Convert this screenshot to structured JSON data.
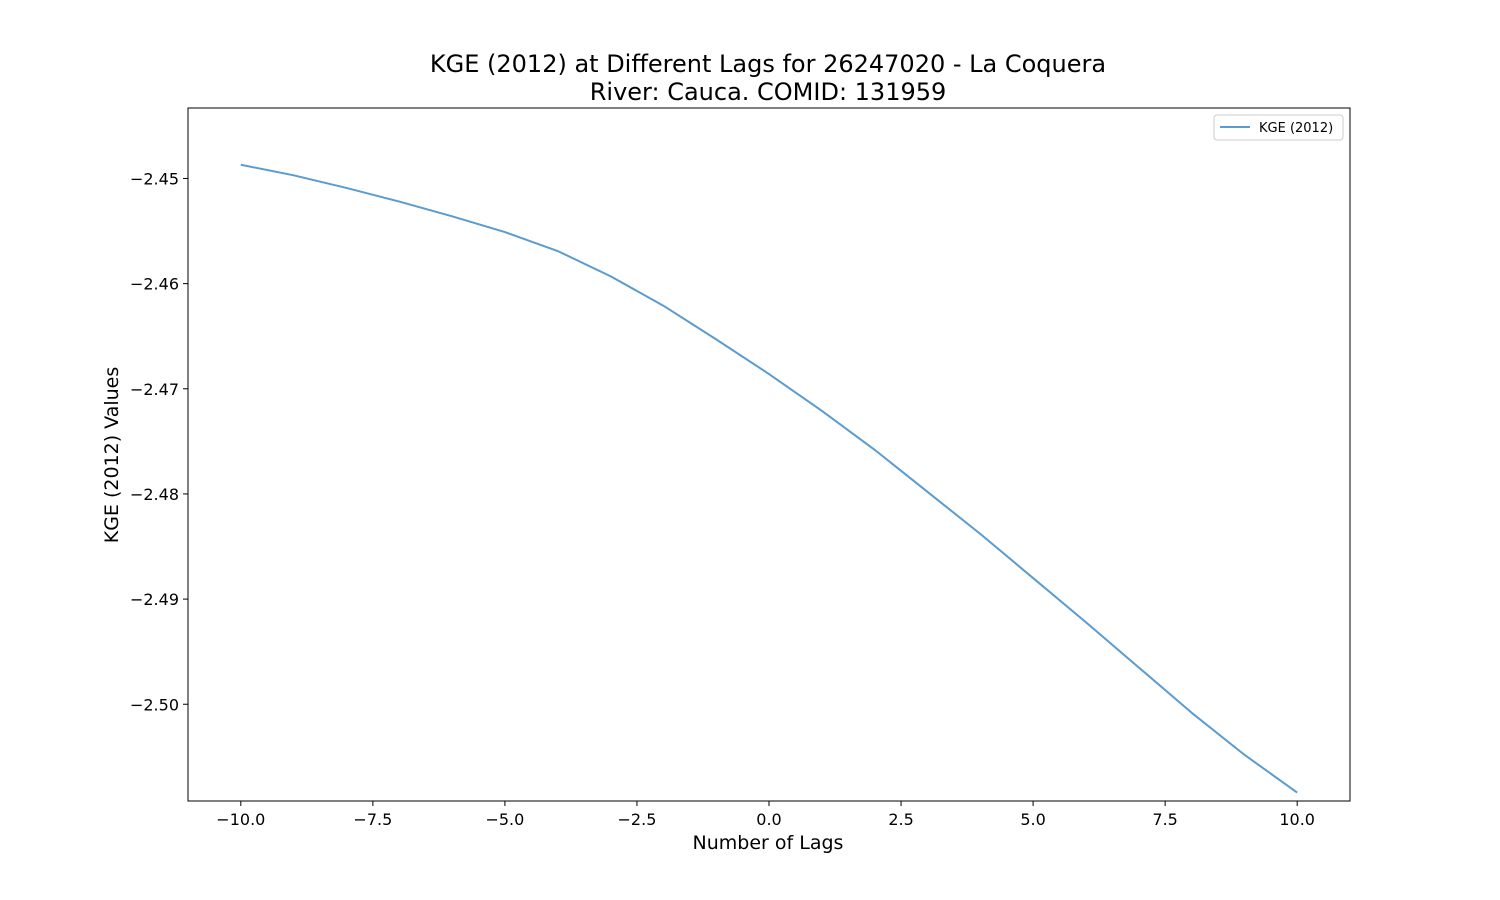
{
  "chart_data": {
    "type": "line",
    "title_lines": [
      "KGE (2012) at Different Lags for 26247020 - La Coquera",
      "River: Cauca. COMID: 131959"
    ],
    "xlabel": "Number of Lags",
    "ylabel": "KGE (2012) Values",
    "xlim": [
      -11,
      11
    ],
    "ylim": [
      -2.5092,
      -2.4433
    ],
    "x_ticks": [
      -10.0,
      -7.5,
      -5.0,
      -2.5,
      0.0,
      2.5,
      5.0,
      7.5,
      10.0
    ],
    "x_tick_labels": [
      "−10.0",
      "−7.5",
      "−5.0",
      "−2.5",
      "0.0",
      "2.5",
      "5.0",
      "7.5",
      "10.0"
    ],
    "y_ticks": [
      -2.45,
      -2.46,
      -2.47,
      -2.48,
      -2.49,
      -2.5
    ],
    "y_tick_labels": [
      "−2.45",
      "−2.46",
      "−2.47",
      "−2.48",
      "−2.49",
      "−2.50"
    ],
    "grid": false,
    "legend_position": "top-right",
    "series": [
      {
        "name": "KGE (2012)",
        "color": "#5a9bd0",
        "x": [
          -10,
          -9,
          -8,
          -7,
          -6,
          -5,
          -4,
          -3,
          -2,
          -1,
          0,
          1,
          2,
          3,
          4,
          5,
          6,
          7,
          8,
          9,
          10
        ],
        "y": [
          -2.4487,
          -2.4497,
          -2.4509,
          -2.4522,
          -2.4536,
          -2.4551,
          -2.4569,
          -2.4593,
          -2.4621,
          -2.4653,
          -2.4686,
          -2.4721,
          -2.4758,
          -2.4798,
          -2.4838,
          -2.488,
          -2.4922,
          -2.4965,
          -2.5008,
          -2.5048,
          -2.5084
        ]
      }
    ]
  }
}
